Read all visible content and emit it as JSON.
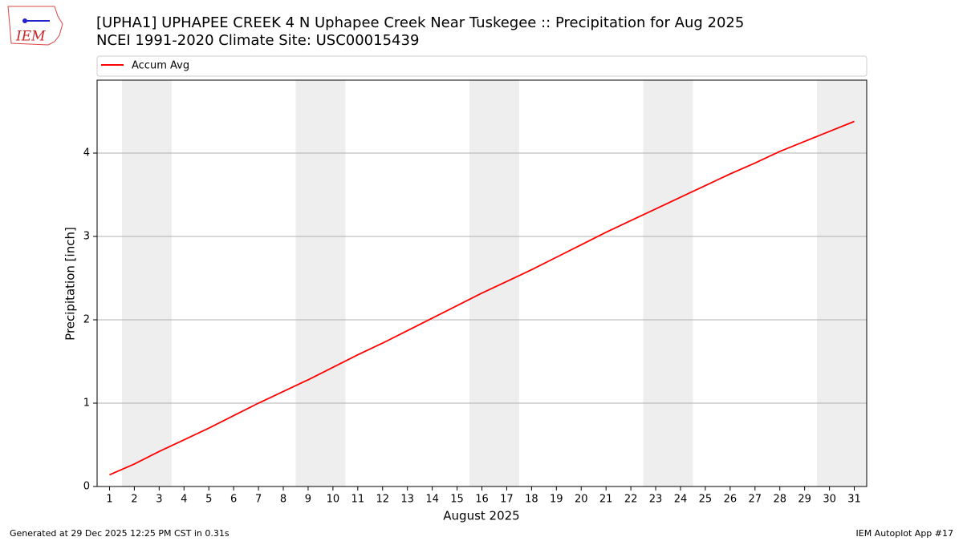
{
  "logo_text": "IEM",
  "footer_left": "Generated at 29 Dec 2025 12:25 PM CST in 0.31s",
  "footer_right": "IEM Autoplot App #17",
  "chart_data": {
    "type": "line",
    "title": "[UPHA1] UPHAPEE CREEK 4 N Uphapee Creek Near Tuskegee :: Precipitation for Aug 2025",
    "subtitle": "NCEI 1991-2020 Climate Site: USC00015439",
    "x_label": "August 2025",
    "y_label": "Precipitation [inch]",
    "x": [
      1,
      2,
      3,
      4,
      5,
      6,
      7,
      8,
      9,
      10,
      11,
      12,
      13,
      14,
      15,
      16,
      17,
      18,
      19,
      20,
      21,
      22,
      23,
      24,
      25,
      26,
      27,
      28,
      29,
      30,
      31
    ],
    "series": [
      {
        "name": "Accum Avg",
        "color": "#ff0000",
        "values": [
          0.14,
          0.27,
          0.42,
          0.56,
          0.7,
          0.85,
          1.0,
          1.14,
          1.28,
          1.43,
          1.58,
          1.72,
          1.87,
          2.02,
          2.17,
          2.32,
          2.46,
          2.6,
          2.75,
          2.9,
          3.05,
          3.19,
          3.33,
          3.47,
          3.61,
          3.75,
          3.88,
          4.02,
          4.14,
          4.26,
          4.38
        ]
      }
    ],
    "xlim": [
      0.5,
      31.5
    ],
    "xticks": [
      1,
      2,
      3,
      4,
      5,
      6,
      7,
      8,
      9,
      10,
      11,
      12,
      13,
      14,
      15,
      16,
      17,
      18,
      19,
      20,
      21,
      22,
      23,
      24,
      25,
      26,
      27,
      28,
      29,
      30,
      31
    ],
    "ylim": [
      0,
      4.875
    ],
    "yticks": [
      0,
      1,
      2,
      3,
      4
    ],
    "grid": true,
    "shaded_x_ranges": [
      [
        1.5,
        3.5
      ],
      [
        8.5,
        10.5
      ],
      [
        15.5,
        17.5
      ],
      [
        22.5,
        24.5
      ],
      [
        29.5,
        31.5
      ]
    ],
    "shade_color": "#eeeeee",
    "legend": "top"
  }
}
